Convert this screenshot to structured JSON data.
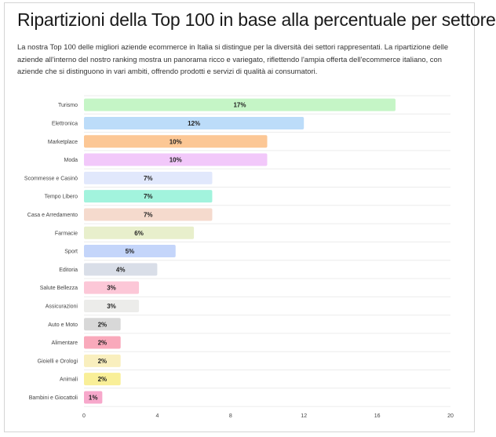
{
  "header": {
    "title": "Ripartizioni della Top 100 in base alla percentuale per settore",
    "description": "La nostra Top 100 delle migliori aziende ecommerce in Italia si distingue per la diversità dei settori rappresentati. La ripartizione delle aziende all'interno del nostro ranking mostra un panorama ricco e variegato, riflettendo l'ampia offerta dell'ecommerce italiano, con aziende che si distinguono in vari ambiti, offrendo prodotti e servizi di qualità ai consumatori."
  },
  "chart_data": {
    "type": "bar",
    "orientation": "horizontal",
    "categories": [
      "Turismo",
      "Elettronica",
      "Marketplace",
      "Moda",
      "Scommesse e Casinò",
      "Tempo Libero",
      "Casa e Arredamento",
      "Farmacie",
      "Sport",
      "Editoria",
      "Salute Bellezza",
      "Assicurazioni",
      "Auto e Moto",
      "Alimentare",
      "Gioielli e Orologi",
      "Animali",
      "Bambini e Giocattoli"
    ],
    "values": [
      17,
      12,
      10,
      10,
      7,
      7,
      7,
      6,
      5,
      4,
      3,
      3,
      2,
      2,
      2,
      2,
      1
    ],
    "value_labels": [
      "17%",
      "12%",
      "10%",
      "10%",
      "7%",
      "7%",
      "7%",
      "6%",
      "5%",
      "4%",
      "3%",
      "3%",
      "2%",
      "2%",
      "2%",
      "2%",
      "1%"
    ],
    "colors": [
      "#c5f5c6",
      "#bcdcf9",
      "#fcc795",
      "#f2c8fa",
      "#e1e8fc",
      "#a2f3dd",
      "#f5dacd",
      "#e8efcc",
      "#c4d5fa",
      "#d9dee8",
      "#fcc7d7",
      "#ececea",
      "#d8d8d8",
      "#f9a9bb",
      "#f9efbe",
      "#f9ef98",
      "#f7a8cb"
    ],
    "xlim": [
      0,
      20
    ],
    "xticks": [
      0,
      4,
      8,
      12,
      16,
      20
    ],
    "grid": true,
    "legend": "none"
  }
}
